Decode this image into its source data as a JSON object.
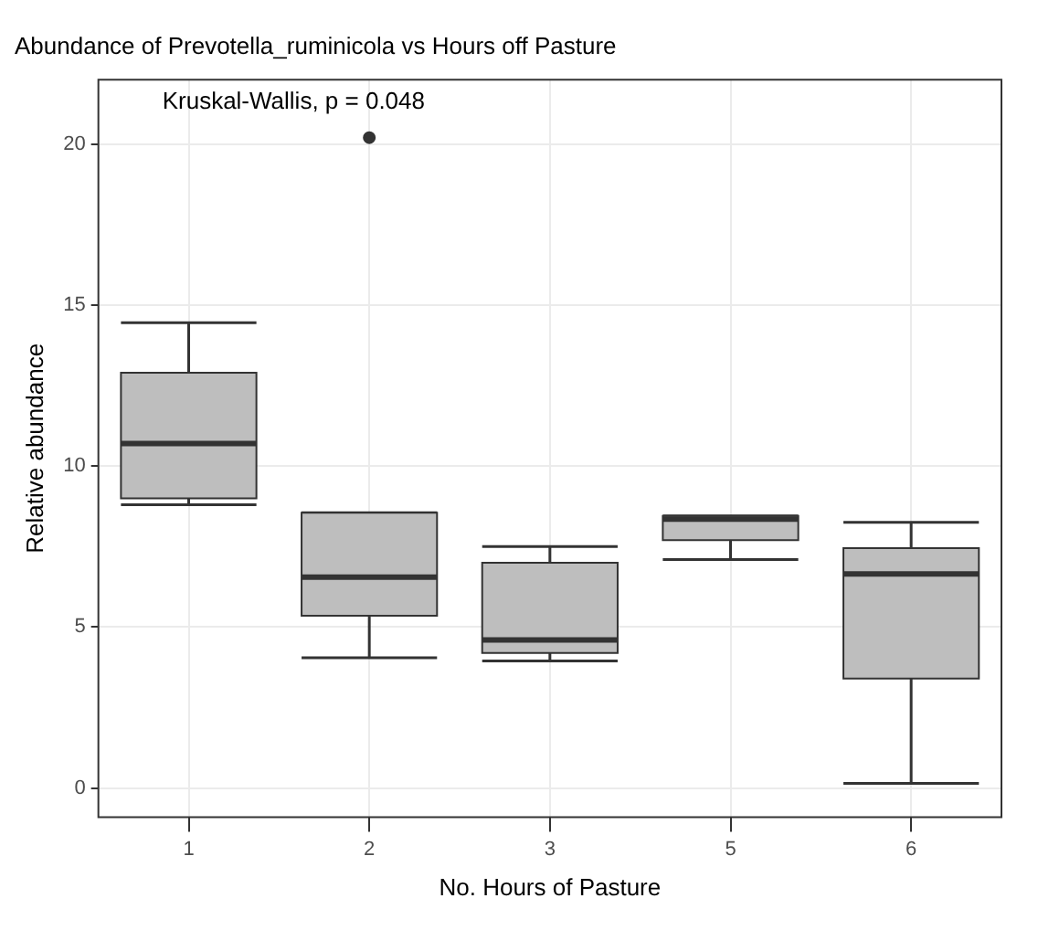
{
  "chart_data": {
    "type": "box",
    "title": "Abundance of Prevotella_ruminicola vs Hours off Pasture",
    "xlabel": "No. Hours of Pasture",
    "ylabel": "Relative abundance",
    "categories": [
      "1",
      "2",
      "3",
      "5",
      "6"
    ],
    "color": "#bebebe",
    "boxes": [
      {
        "low": 8.8,
        "q1": 9.0,
        "median": 10.7,
        "q3": 12.9,
        "high": 14.45
      },
      {
        "low": 4.05,
        "q1": 5.35,
        "median": 6.55,
        "q3": 8.55,
        "high": 8.55,
        "outliers": [
          20.2
        ]
      },
      {
        "low": 3.95,
        "q1": 4.2,
        "median": 4.6,
        "q3": 7.0,
        "high": 7.5
      },
      {
        "low": 7.1,
        "q1": 7.7,
        "median": 8.35,
        "q3": 8.45,
        "high": 8.45
      },
      {
        "low": 0.15,
        "q1": 3.4,
        "median": 6.65,
        "q3": 7.45,
        "high": 8.25
      }
    ],
    "ylim": [
      -0.9,
      22
    ],
    "yticks": [
      0,
      5,
      10,
      15,
      20
    ],
    "grid": true,
    "legend": false,
    "annotations": [
      "Kruskal-Wallis, p = 0.048"
    ]
  }
}
